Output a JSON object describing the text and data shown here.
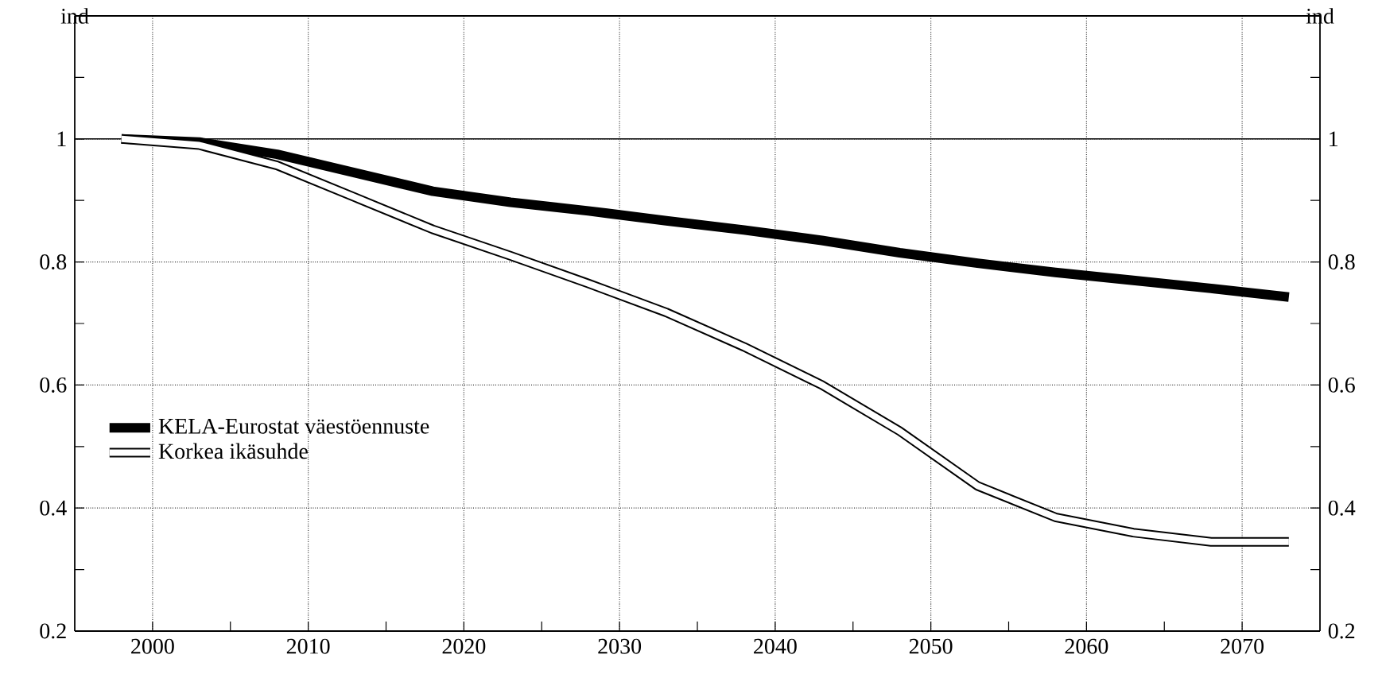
{
  "chart_data": {
    "type": "line",
    "ylabel": "ind",
    "y2label": "ind",
    "x": [
      1998,
      2003,
      2008,
      2013,
      2018,
      2023,
      2028,
      2033,
      2038,
      2043,
      2048,
      2053,
      2058,
      2063,
      2068,
      2073
    ],
    "series": [
      {
        "name": "KELA-Eurostat väestöennuste",
        "color": "#000000",
        "values": [
          1.0,
          0.995,
          0.975,
          0.945,
          0.915,
          0.897,
          0.883,
          0.867,
          0.852,
          0.835,
          0.815,
          0.798,
          0.783,
          0.77,
          0.757,
          0.743
        ]
      },
      {
        "name": "Korkea ikäsuhde",
        "color": "#000000",
        "values": [
          1.0,
          0.99,
          0.957,
          0.905,
          0.853,
          0.81,
          0.765,
          0.718,
          0.662,
          0.6,
          0.525,
          0.436,
          0.385,
          0.36,
          0.345,
          0.345
        ]
      }
    ],
    "xlim": [
      1995,
      2075
    ],
    "xticks": [
      2000,
      {
        "value": 2005,
        "label": null
      },
      2010,
      {
        "value": 2015,
        "label": null
      },
      2020,
      {
        "value": 2025,
        "label": null
      },
      2030,
      {
        "value": 2035,
        "label": null
      },
      2040,
      {
        "value": 2045,
        "label": null
      },
      2050,
      {
        "value": 2055,
        "label": null
      },
      2060,
      {
        "value": 2065,
        "label": null
      },
      2070
    ],
    "ylim": [
      0.2,
      1.2
    ],
    "yticks": [
      0.2,
      {
        "value": 0.3,
        "label": null
      },
      0.4,
      {
        "value": 0.5,
        "label": null
      },
      0.6,
      {
        "value": 0.7,
        "label": null
      },
      0.8,
      {
        "value": 0.9,
        "label": null
      },
      1,
      {
        "value": 1.1,
        "label": null
      }
    ],
    "y2lim": [
      0.2,
      1.2
    ],
    "y2ticks": [
      0.2,
      {
        "value": 0.3,
        "label": null
      },
      0.4,
      {
        "value": 0.5,
        "label": null
      },
      0.6,
      {
        "value": 0.7,
        "label": null
      },
      0.8,
      {
        "value": 0.9,
        "label": null
      },
      1,
      {
        "value": 1.1,
        "label": null
      }
    ],
    "ref_lines": [
      {
        "axis": "y",
        "value": 1,
        "line_style": "solid"
      }
    ],
    "grid": true,
    "legend": "left",
    "marker": "none",
    "line_style": "solid"
  }
}
